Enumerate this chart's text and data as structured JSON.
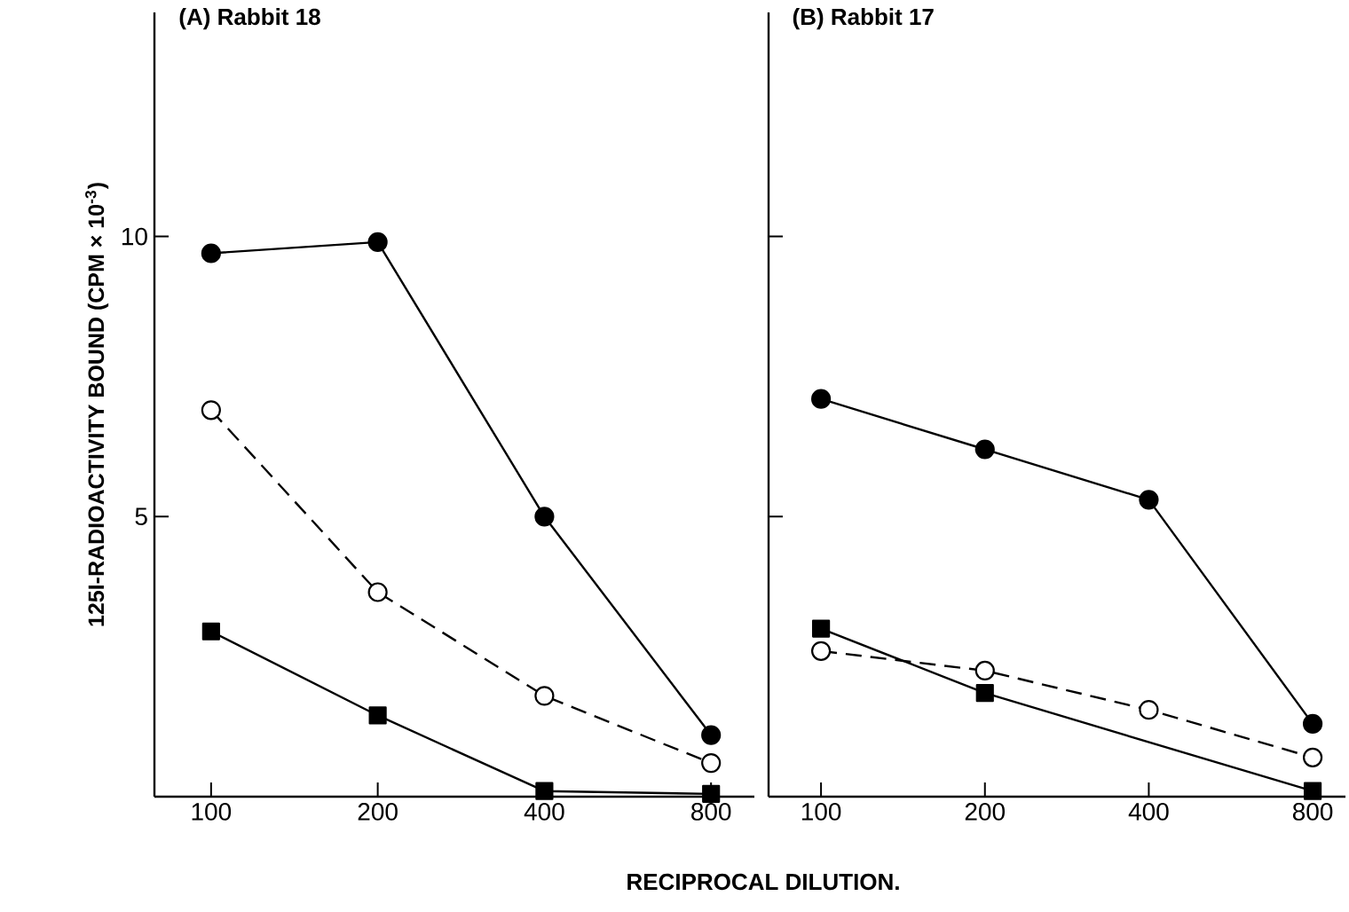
{
  "chart_data": [
    {
      "type": "line",
      "title": "(A) Rabbit 18",
      "xlabel": "RECIPROCAL DILUTION.",
      "ylabel": "125I-RADIOACTIVITY BOUND (CPM × 10$^{-3}$)",
      "categories": [
        "100",
        "200",
        "400",
        "800"
      ],
      "ylim": [
        0,
        14
      ],
      "yticks": [
        5,
        10
      ],
      "series": [
        {
          "color": "#000000",
          "marker": "circle",
          "line_style": "solid",
          "values": [
            9.7,
            9.9,
            5.0,
            1.1
          ]
        },
        {
          "color": "#000000",
          "marker": "circle",
          "line_style": "dashed",
          "values": [
            6.9,
            3.65,
            1.8,
            0.6
          ]
        },
        {
          "color": "#000000",
          "marker": "square",
          "line_style": "solid",
          "values": [
            2.95,
            1.45,
            0.1,
            0.05
          ]
        }
      ]
    },
    {
      "type": "line",
      "title": "(B) Rabbit 17",
      "tick_labels": "x",
      "categories": [
        "100",
        "200",
        "400",
        "800"
      ],
      "ylim": [
        0,
        14
      ],
      "yticks": [
        5,
        10
      ],
      "series": [
        {
          "color": "#000000",
          "marker": "circle",
          "line_style": "solid",
          "values": [
            7.1,
            6.2,
            5.3,
            1.3
          ]
        },
        {
          "color": "#000000",
          "marker": "circle",
          "line_style": "dashed",
          "values": [
            2.6,
            2.25,
            1.55,
            0.7
          ]
        },
        {
          "color": "#000000",
          "marker": "square",
          "line_style": "solid",
          "values": [
            3.0,
            1.85,
            null,
            0.1
          ]
        }
      ]
    }
  ]
}
